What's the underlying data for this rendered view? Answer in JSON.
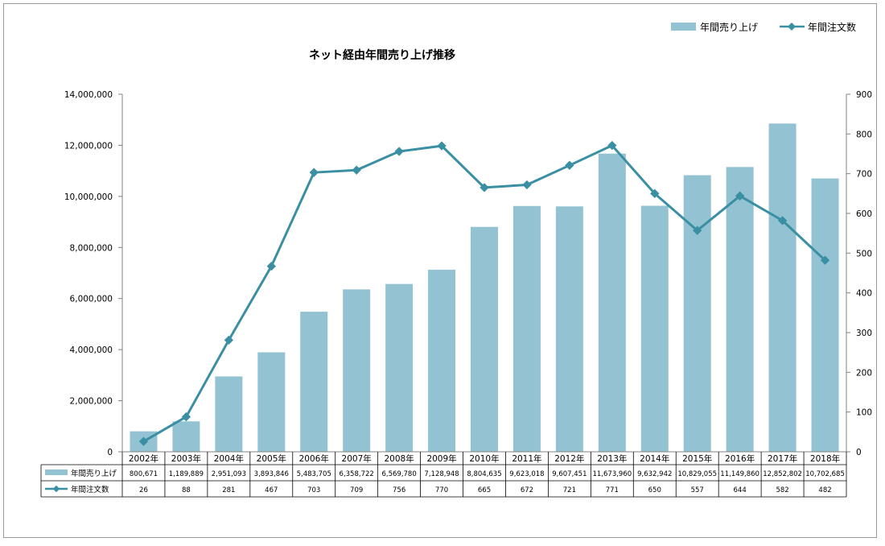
{
  "chart_data": {
    "type": "bar",
    "title": "ネット経由年間売り上げ推移",
    "categories": [
      "2002年",
      "2003年",
      "2004年",
      "2005年",
      "2006年",
      "2007年",
      "2008年",
      "2009年",
      "2010年",
      "2011年",
      "2012年",
      "2013年",
      "2014年",
      "2015年",
      "2016年",
      "2017年",
      "2018年"
    ],
    "series": [
      {
        "name": "年間売り上げ",
        "type": "bar",
        "axis": "left",
        "color": "#93c3d3",
        "values": [
          800671,
          1189889,
          2951093,
          3893846,
          5483705,
          6358722,
          6569780,
          7128948,
          8804635,
          9623018,
          9607451,
          11673960,
          9632942,
          10829055,
          11149860,
          12852802,
          10702685
        ],
        "labels": [
          "800,671",
          "1,189,889",
          "2,951,093",
          "3,893,846",
          "5,483,705",
          "6,358,722",
          "6,569,780",
          "7,128,948",
          "8,804,635",
          "9,623,018",
          "9,607,451",
          "11,673,960",
          "9,632,942",
          "10,829,055",
          "11,149,860",
          "12,852,802",
          "10,702,685"
        ]
      },
      {
        "name": "年間注文数",
        "type": "line",
        "axis": "right",
        "color": "#3a8fa3",
        "values": [
          26,
          88,
          281,
          467,
          703,
          709,
          756,
          770,
          665,
          672,
          721,
          771,
          650,
          557,
          644,
          582,
          482
        ],
        "labels": [
          "26",
          "88",
          "281",
          "467",
          "703",
          "709",
          "756",
          "770",
          "665",
          "672",
          "721",
          "771",
          "650",
          "557",
          "644",
          "582",
          "482"
        ]
      }
    ],
    "y_left": {
      "ylim": [
        0,
        14000000
      ],
      "ticks": [
        "0",
        "2,000,000",
        "4,000,000",
        "6,000,000",
        "8,000,000",
        "10,000,000",
        "12,000,000",
        "14,000,000"
      ],
      "tick_values": [
        0,
        2000000,
        4000000,
        6000000,
        8000000,
        10000000,
        12000000,
        14000000
      ]
    },
    "y_right": {
      "ylim": [
        0,
        900
      ],
      "ticks": [
        "0",
        "100",
        "200",
        "300",
        "400",
        "500",
        "600",
        "700",
        "800",
        "900"
      ],
      "tick_values": [
        0,
        100,
        200,
        300,
        400,
        500,
        600,
        700,
        800,
        900
      ]
    },
    "grid": false,
    "legend_position": "top-right",
    "data_table": true
  }
}
